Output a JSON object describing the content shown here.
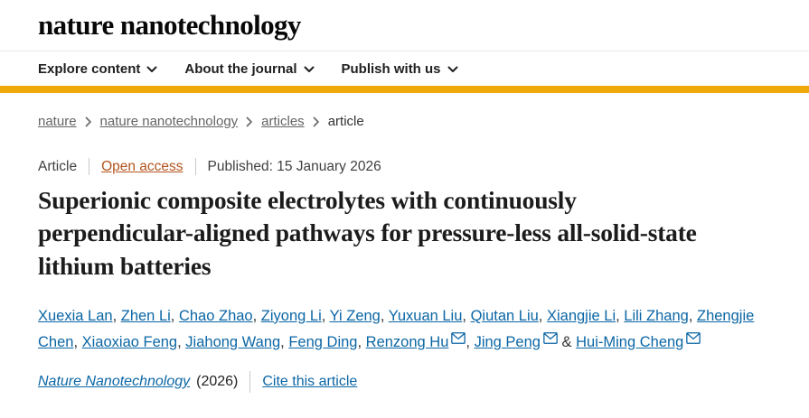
{
  "header": {
    "logo": "nature nanotechnology"
  },
  "nav": {
    "items": [
      "Explore content",
      "About the journal",
      "Publish with us"
    ]
  },
  "breadcrumb": {
    "items": [
      {
        "label": "nature",
        "link": true
      },
      {
        "label": "nature nanotechnology",
        "link": true
      },
      {
        "label": "articles",
        "link": true
      },
      {
        "label": "article",
        "link": false
      }
    ]
  },
  "article": {
    "type": "Article",
    "access_label": "Open access",
    "published": "Published: 15 January 2026",
    "title": "Superionic composite electrolytes with continuously perpendicular-aligned pathways for pressure-less all-solid-state lithium batteries"
  },
  "authors": {
    "list": [
      {
        "name": "Xuexia Lan",
        "email": false
      },
      {
        "name": "Zhen Li",
        "email": false
      },
      {
        "name": "Chao Zhao",
        "email": false
      },
      {
        "name": "Ziyong Li",
        "email": false
      },
      {
        "name": "Yi Zeng",
        "email": false
      },
      {
        "name": "Yuxuan Liu",
        "email": false
      },
      {
        "name": "Qiutan Liu",
        "email": false
      },
      {
        "name": "Xiangjie Li",
        "email": false
      },
      {
        "name": "Lili Zhang",
        "email": false
      },
      {
        "name": "Zhengjie Chen",
        "email": false
      },
      {
        "name": "Xiaoxiao Feng",
        "email": false
      },
      {
        "name": "Jiahong Wang",
        "email": false
      },
      {
        "name": "Feng Ding",
        "email": false
      },
      {
        "name": "Renzong Hu",
        "email": true
      },
      {
        "name": "Jing Peng",
        "email": true
      },
      {
        "name": "Hui-Ming Cheng",
        "email": true
      }
    ],
    "last_separator": "&"
  },
  "citation": {
    "journal": "Nature Nanotechnology",
    "year": "(2026)",
    "cite_label": "Cite this article"
  },
  "icons": {
    "nav_chevron": "chevron-down-icon",
    "breadcrumb_chevron": "chevron-right-icon",
    "author_email": "email-envelope-icon"
  },
  "colors": {
    "brand_accent": "#f0a90a",
    "link_blue": "#0b66a5",
    "open_access_orange": "#b3531d",
    "breadcrumb_gray": "#646464"
  }
}
